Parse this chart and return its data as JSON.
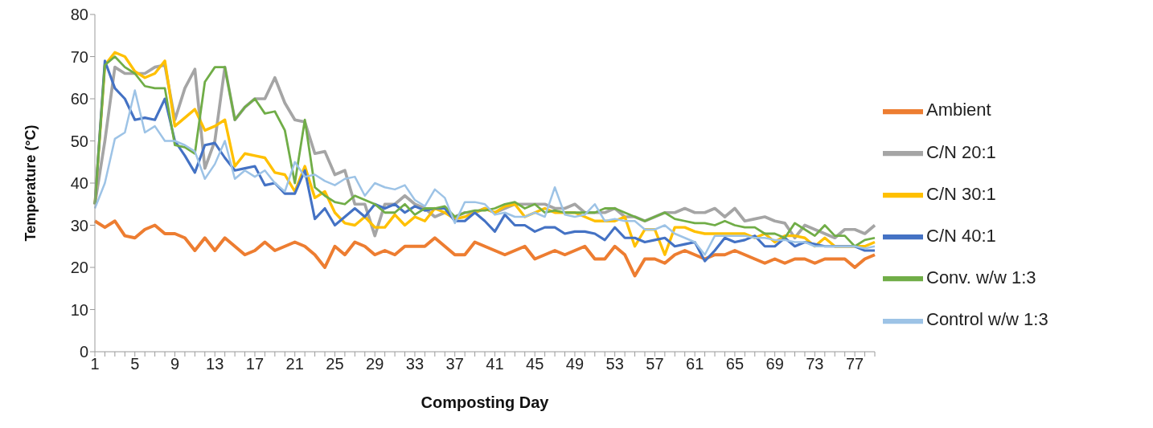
{
  "chart_data": {
    "type": "line",
    "xlabel": "Composting Day",
    "ylabel": "Temperature (°C)",
    "categories": [
      "1",
      null,
      null,
      null,
      "5",
      null,
      null,
      null,
      "9",
      null,
      null,
      null,
      "13",
      null,
      null,
      null,
      "17",
      null,
      null,
      null,
      "21",
      null,
      null,
      null,
      "25",
      null,
      null,
      null,
      "29",
      null,
      null,
      null,
      "33",
      null,
      null,
      null,
      "37",
      null,
      null,
      null,
      "41",
      null,
      null,
      null,
      "45",
      null,
      null,
      null,
      "49",
      null,
      null,
      null,
      "53",
      null,
      null,
      null,
      "57",
      null,
      null,
      null,
      "61",
      null,
      null,
      null,
      "65",
      null,
      null,
      null,
      "69",
      null,
      null,
      null,
      "73",
      null,
      null,
      null,
      "77",
      null,
      null
    ],
    "ylim": [
      0,
      80
    ],
    "yticks": [
      0,
      10,
      20,
      30,
      40,
      50,
      60,
      70,
      80
    ],
    "grid": false,
    "legend": "right",
    "marker": "none",
    "line_style": "solid",
    "series": [
      {
        "name": "Ambient",
        "color": "#ed7d31",
        "values": [
          31,
          29.5,
          31,
          27.5,
          27,
          29,
          30,
          28,
          28,
          27,
          24,
          27,
          24,
          27,
          25,
          23,
          24,
          26,
          24,
          25,
          26,
          25,
          23,
          20,
          25,
          23,
          26,
          25,
          23,
          24,
          23,
          25,
          25,
          25,
          27,
          25,
          23,
          23,
          26,
          25,
          24,
          23,
          24,
          25,
          22,
          23,
          24,
          23,
          24,
          25,
          22,
          22,
          25,
          23,
          18,
          22,
          22,
          21,
          23,
          24,
          23,
          22,
          23,
          23,
          24,
          23,
          22,
          21,
          22,
          21,
          22,
          22,
          21,
          22,
          22,
          22,
          20,
          22,
          23
        ]
      },
      {
        "name": "C/N 20:1",
        "color": "#a5a5a5",
        "values": [
          35,
          50,
          67.5,
          66,
          66,
          66,
          67.5,
          68,
          55,
          62.5,
          67,
          43.5,
          50,
          67.5,
          55,
          58,
          60,
          60,
          65,
          59,
          55,
          54.5,
          47,
          47.5,
          42,
          43,
          35,
          35,
          27.5,
          35,
          35,
          37,
          35,
          34,
          32,
          33,
          32,
          33,
          33,
          34,
          33,
          34,
          35,
          35,
          35,
          35,
          34,
          34,
          35,
          33,
          33,
          33,
          34,
          32,
          32,
          31,
          32,
          33,
          33,
          34,
          33,
          33,
          34,
          32,
          34,
          31,
          31.5,
          32,
          31,
          30.5,
          27,
          30,
          29,
          28,
          27,
          29,
          29,
          28,
          30
        ]
      },
      {
        "name": "C/N 30:1",
        "color": "#ffc000",
        "values": [
          35,
          68,
          71,
          70,
          66.5,
          65,
          66,
          69,
          53.5,
          55.5,
          57.5,
          52.5,
          53.5,
          55,
          44,
          47,
          46.5,
          46,
          42.5,
          42,
          38,
          44,
          36.5,
          38,
          33,
          30.5,
          30,
          32,
          29.5,
          29.5,
          32.5,
          30,
          32,
          31,
          34,
          33,
          31.5,
          32,
          33,
          34,
          33,
          34.5,
          35,
          32,
          33,
          34,
          33,
          33,
          33,
          32,
          31,
          31,
          31,
          32,
          25,
          29,
          29,
          23,
          29.5,
          29.5,
          28.5,
          28,
          28,
          28,
          28,
          28,
          27,
          28,
          26,
          27.5,
          27.5,
          27,
          25,
          27,
          25,
          25,
          25,
          25,
          26
        ]
      },
      {
        "name": "C/N 40:1",
        "color": "#4472c4",
        "values": [
          35,
          69,
          62.5,
          60,
          55,
          55.5,
          55,
          60,
          50,
          46.5,
          42.5,
          49,
          49.5,
          46,
          43,
          43.5,
          44,
          39.5,
          40,
          37.5,
          37.5,
          43,
          31.5,
          34,
          30,
          32,
          34,
          32,
          35,
          34,
          35,
          33,
          34.5,
          33.5,
          34,
          34,
          31,
          31,
          33,
          31,
          28.5,
          32.5,
          30,
          30,
          28.5,
          29.5,
          29.5,
          28,
          28.5,
          28.5,
          28,
          26.5,
          29.5,
          27,
          27,
          26,
          26.5,
          27,
          25,
          25.5,
          26,
          21.5,
          24,
          27,
          26,
          26.5,
          27.5,
          25,
          25,
          27,
          25,
          26,
          25.5,
          25,
          25,
          25,
          25,
          24,
          24
        ]
      },
      {
        "name": "Conv. w/w 1:3",
        "color": "#70ad47",
        "values": [
          35,
          68,
          70,
          67.5,
          66,
          63,
          62.5,
          62.5,
          49,
          48.5,
          47,
          64,
          67.5,
          67.5,
          55,
          58,
          60,
          56.5,
          57,
          52.5,
          40,
          55,
          39,
          37,
          35.5,
          35,
          37,
          36,
          35,
          33,
          33,
          35,
          32.5,
          34,
          34,
          34.5,
          32,
          33,
          33.5,
          33.5,
          34,
          35,
          35.5,
          34,
          35,
          33,
          33.5,
          33,
          33,
          33,
          33,
          34,
          34,
          33,
          32,
          31,
          32,
          33,
          31.5,
          31,
          30.5,
          30.5,
          30,
          31,
          30,
          29.5,
          29.5,
          28,
          28,
          27,
          30.5,
          29,
          27.5,
          30,
          27.5,
          27.5,
          25,
          26.5,
          27
        ]
      },
      {
        "name": "Control w/w 1:3",
        "color": "#9dc3e6",
        "values": [
          34,
          40,
          50.5,
          52,
          62,
          52,
          53.5,
          50,
          50,
          49,
          47.5,
          41,
          44.5,
          50,
          41,
          43,
          41.5,
          43,
          40,
          38,
          45,
          41.5,
          42,
          40.5,
          39.5,
          41,
          41.5,
          37,
          40,
          39,
          38.5,
          39.5,
          36,
          34.5,
          38.5,
          36.5,
          30.5,
          35.5,
          35.5,
          35,
          32.5,
          33,
          32,
          32,
          33,
          32,
          39,
          32.5,
          32,
          32.5,
          35,
          31,
          31.5,
          31,
          31,
          29,
          29,
          30,
          28,
          27,
          26,
          23,
          27.5,
          27.5,
          27.5,
          27.5,
          27,
          27,
          26.5,
          26.5,
          26,
          26,
          25,
          25,
          25,
          25,
          25,
          24.5,
          25
        ]
      }
    ]
  }
}
